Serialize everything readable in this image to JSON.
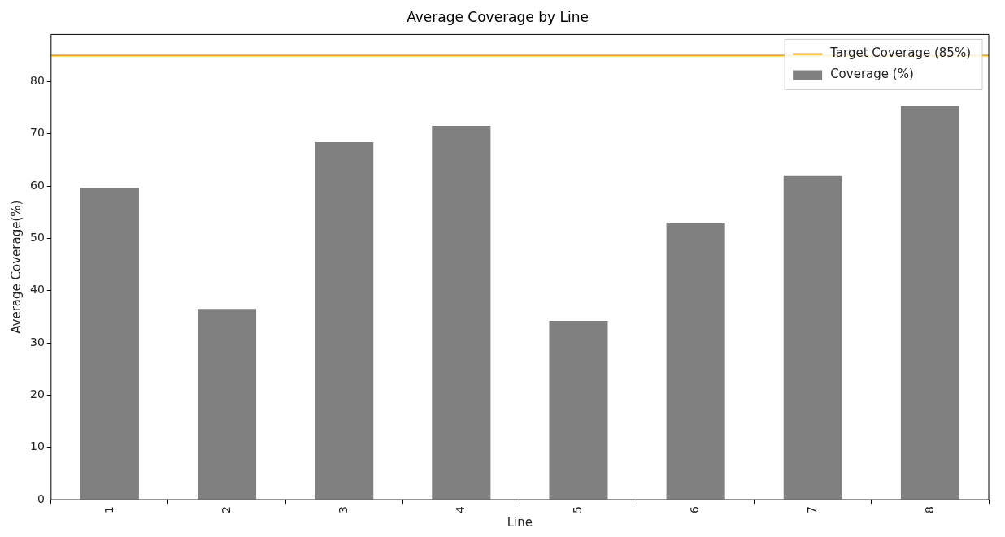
{
  "chart_data": {
    "type": "bar",
    "title": "Average Coverage by Line",
    "xlabel": "Line",
    "ylabel": "Average Coverage(%)",
    "categories": [
      "1",
      "2",
      "3",
      "4",
      "5",
      "6",
      "7",
      "8"
    ],
    "series": [
      {
        "name": "Coverage (%)",
        "color": "#808080",
        "values": [
          59.6,
          36.5,
          68.4,
          71.5,
          34.2,
          53.0,
          61.9,
          75.3
        ]
      }
    ],
    "ylim": [
      0,
      89
    ],
    "yticks": [
      0,
      10,
      20,
      30,
      40,
      50,
      60,
      70,
      80
    ],
    "grid": false,
    "legend": "top right",
    "ref_lines": [
      {
        "axis": "y",
        "value": 85,
        "label": "Target Coverage (85%)",
        "color": "#ffa500",
        "line_style": "solid"
      }
    ]
  }
}
